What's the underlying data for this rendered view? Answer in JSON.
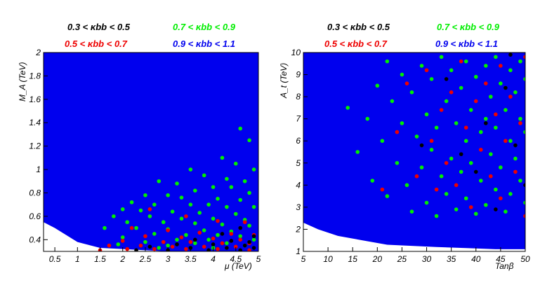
{
  "chart_data": [
    {
      "type": "scatter",
      "xlabel": "μ (TeV)",
      "ylabel": "M_A (TeV)",
      "xlim": [
        0.25,
        5.0
      ],
      "ylim": [
        0.3,
        2.0
      ],
      "xticks": [
        "0.5",
        "1",
        "1.5",
        "2",
        "2.5",
        "3",
        "3.5",
        "4",
        "4.5",
        "5"
      ],
      "yticks": [
        "0.4",
        "0.6",
        "0.8",
        "1",
        "1.2",
        "1.4",
        "1.6",
        "1.8",
        "2"
      ],
      "legend": [
        {
          "label": "0.3 < κbb < 0.5",
          "color": "#000000"
        },
        {
          "label": "0.7 < κbb < 0.9",
          "color": "#00ee00"
        },
        {
          "label": "0.5 < κbb < 0.7",
          "color": "#ee0000"
        },
        {
          "label": "0.9 < κbb < 1.1",
          "color": "#0000ee"
        }
      ],
      "series": [
        {
          "name": "0.9 < κbb < 1.1",
          "color": "#0000ee",
          "region": "dense fill above boundary",
          "boundary": [
            [
              0.25,
              0.55
            ],
            [
              0.5,
              0.5
            ],
            [
              1.0,
              0.38
            ],
            [
              1.5,
              0.33
            ],
            [
              2.0,
              0.32
            ],
            [
              2.5,
              0.31
            ],
            [
              3.0,
              0.3
            ],
            [
              5.0,
              0.3
            ]
          ]
        },
        {
          "name": "0.7 < κbb < 0.9",
          "color": "#00ee00",
          "points": [
            [
              4.6,
              1.35
            ],
            [
              4.8,
              1.25
            ],
            [
              4.2,
              1.1
            ],
            [
              4.5,
              1.05
            ],
            [
              3.5,
              1.0
            ],
            [
              4.9,
              1.0
            ],
            [
              3.8,
              0.95
            ],
            [
              4.3,
              0.92
            ],
            [
              4.7,
              0.9
            ],
            [
              2.8,
              0.9
            ],
            [
              3.2,
              0.88
            ],
            [
              4.0,
              0.85
            ],
            [
              4.4,
              0.85
            ],
            [
              3.6,
              0.82
            ],
            [
              4.8,
              0.8
            ],
            [
              2.5,
              0.78
            ],
            [
              3.0,
              0.78
            ],
            [
              3.3,
              0.76
            ],
            [
              4.1,
              0.75
            ],
            [
              4.6,
              0.74
            ],
            [
              2.2,
              0.72
            ],
            [
              2.7,
              0.7
            ],
            [
              3.5,
              0.7
            ],
            [
              3.9,
              0.7
            ],
            [
              4.3,
              0.68
            ],
            [
              4.9,
              0.68
            ],
            [
              2.0,
              0.66
            ],
            [
              2.4,
              0.65
            ],
            [
              3.1,
              0.64
            ],
            [
              3.7,
              0.63
            ],
            [
              4.5,
              0.62
            ],
            [
              1.8,
              0.6
            ],
            [
              2.6,
              0.6
            ],
            [
              3.3,
              0.58
            ],
            [
              4.0,
              0.58
            ],
            [
              4.7,
              0.57
            ],
            [
              2.1,
              0.55
            ],
            [
              2.9,
              0.55
            ],
            [
              3.6,
              0.54
            ],
            [
              4.2,
              0.53
            ],
            [
              4.8,
              0.52
            ],
            [
              1.6,
              0.5
            ],
            [
              2.3,
              0.5
            ],
            [
              3.0,
              0.49
            ],
            [
              3.8,
              0.48
            ],
            [
              4.4,
              0.47
            ],
            [
              2.7,
              0.45
            ],
            [
              3.4,
              0.44
            ],
            [
              4.1,
              0.44
            ],
            [
              4.6,
              0.43
            ],
            [
              2.0,
              0.42
            ],
            [
              3.2,
              0.4
            ],
            [
              3.9,
              0.4
            ],
            [
              4.9,
              0.4
            ],
            [
              2.5,
              0.38
            ],
            [
              3.6,
              0.37
            ],
            [
              4.3,
              0.37
            ],
            [
              1.9,
              0.36
            ],
            [
              3.0,
              0.35
            ],
            [
              4.7,
              0.35
            ],
            [
              2.8,
              0.33
            ],
            [
              4.0,
              0.33
            ]
          ]
        },
        {
          "name": "0.5 < κbb < 0.7",
          "color": "#ee0000",
          "points": [
            [
              2.6,
              0.66
            ],
            [
              3.4,
              0.6
            ],
            [
              4.1,
              0.56
            ],
            [
              4.7,
              0.55
            ],
            [
              2.2,
              0.5
            ],
            [
              3.0,
              0.48
            ],
            [
              3.7,
              0.46
            ],
            [
              4.4,
              0.45
            ],
            [
              4.9,
              0.44
            ],
            [
              2.5,
              0.43
            ],
            [
              3.3,
              0.42
            ],
            [
              4.0,
              0.41
            ],
            [
              4.6,
              0.4
            ],
            [
              2.0,
              0.39
            ],
            [
              2.9,
              0.38
            ],
            [
              3.5,
              0.38
            ],
            [
              4.2,
              0.37
            ],
            [
              4.8,
              0.37
            ],
            [
              1.7,
              0.35
            ],
            [
              2.4,
              0.35
            ],
            [
              3.1,
              0.34
            ],
            [
              3.8,
              0.34
            ],
            [
              4.5,
              0.34
            ],
            [
              2.1,
              0.32
            ],
            [
              2.7,
              0.32
            ],
            [
              3.4,
              0.32
            ],
            [
              4.1,
              0.32
            ],
            [
              4.8,
              0.31
            ],
            [
              1.5,
              0.31
            ]
          ]
        },
        {
          "name": "0.3 < κbb < 0.5",
          "color": "#000000",
          "points": [
            [
              4.6,
              0.5
            ],
            [
              4.2,
              0.45
            ],
            [
              4.9,
              0.43
            ],
            [
              3.6,
              0.4
            ],
            [
              4.4,
              0.39
            ],
            [
              4.8,
              0.38
            ],
            [
              3.2,
              0.36
            ],
            [
              4.0,
              0.36
            ],
            [
              4.7,
              0.35
            ],
            [
              2.6,
              0.34
            ],
            [
              3.5,
              0.33
            ],
            [
              4.3,
              0.33
            ],
            [
              4.9,
              0.33
            ],
            [
              2.3,
              0.31
            ],
            [
              3.0,
              0.31
            ],
            [
              3.9,
              0.31
            ],
            [
              4.6,
              0.31
            ]
          ]
        }
      ]
    },
    {
      "type": "scatter",
      "xlabel": "Tanβ",
      "ylabel": "A_t (TeV)",
      "xlim": [
        5,
        50
      ],
      "ylim": [
        1,
        10
      ],
      "xticks": [
        "5",
        "10",
        "15",
        "20",
        "25",
        "30",
        "35",
        "40",
        "45",
        "50"
      ],
      "yticks": [
        "1",
        "2",
        "3",
        "4",
        "5",
        "6",
        "7",
        "8",
        "9",
        "10"
      ],
      "legend": [
        {
          "label": "0.3 < κbb < 0.5",
          "color": "#000000"
        },
        {
          "label": "0.7 < κbb < 0.9",
          "color": "#00ee00"
        },
        {
          "label": "0.5 < κbb < 0.7",
          "color": "#ee0000"
        },
        {
          "label": "0.9 < κbb < 1.1",
          "color": "#0000ee"
        }
      ],
      "series": [
        {
          "name": "0.9 < κbb < 1.1",
          "color": "#0000ee",
          "region": "dense fill above boundary",
          "boundary": [
            [
              5,
              2.3
            ],
            [
              8,
              2.0
            ],
            [
              12,
              1.7
            ],
            [
              17,
              1.5
            ],
            [
              22,
              1.3
            ],
            [
              27,
              1.25
            ],
            [
              32,
              1.2
            ],
            [
              38,
              1.15
            ],
            [
              44,
              1.1
            ],
            [
              50,
              1.1
            ]
          ]
        },
        {
          "name": "0.7 < κbb < 0.9",
          "color": "#00ee00",
          "points": [
            [
              14,
              7.5
            ],
            [
              16,
              5.5
            ],
            [
              18,
              7.0
            ],
            [
              19,
              4.2
            ],
            [
              20,
              8.5
            ],
            [
              21,
              6.0
            ],
            [
              22,
              9.6
            ],
            [
              22,
              3.5
            ],
            [
              23,
              7.8
            ],
            [
              24,
              5.0
            ],
            [
              25,
              9.0
            ],
            [
              25,
              6.8
            ],
            [
              26,
              4.0
            ],
            [
              27,
              8.2
            ],
            [
              27,
              2.8
            ],
            [
              28,
              6.2
            ],
            [
              29,
              9.4
            ],
            [
              29,
              4.8
            ],
            [
              30,
              7.2
            ],
            [
              30,
              3.2
            ],
            [
              31,
              8.8
            ],
            [
              31,
              5.6
            ],
            [
              32,
              6.6
            ],
            [
              32,
              2.6
            ],
            [
              33,
              9.8
            ],
            [
              33,
              4.4
            ],
            [
              34,
              7.8
            ],
            [
              34,
              3.6
            ],
            [
              35,
              9.2
            ],
            [
              35,
              5.2
            ],
            [
              36,
              6.8
            ],
            [
              36,
              2.9
            ],
            [
              37,
              8.4
            ],
            [
              37,
              4.6
            ],
            [
              38,
              9.6
            ],
            [
              38,
              6.0
            ],
            [
              38,
              3.4
            ],
            [
              39,
              7.4
            ],
            [
              39,
              5.0
            ],
            [
              40,
              8.9
            ],
            [
              40,
              2.7
            ],
            [
              41,
              6.4
            ],
            [
              41,
              4.2
            ],
            [
              42,
              9.4
            ],
            [
              42,
              7.0
            ],
            [
              42,
              3.1
            ],
            [
              43,
              8.0
            ],
            [
              43,
              5.4
            ],
            [
              44,
              9.8
            ],
            [
              44,
              6.6
            ],
            [
              44,
              3.8
            ],
            [
              45,
              8.6
            ],
            [
              45,
              4.8
            ],
            [
              46,
              7.4
            ],
            [
              46,
              2.8
            ],
            [
              47,
              9.2
            ],
            [
              47,
              6.0
            ],
            [
              47,
              3.6
            ],
            [
              48,
              8.2
            ],
            [
              48,
              5.2
            ],
            [
              49,
              9.6
            ],
            [
              49,
              7.0
            ],
            [
              49,
              4.2
            ],
            [
              50,
              8.8
            ],
            [
              50,
              6.4
            ],
            [
              50,
              3.2
            ]
          ]
        },
        {
          "name": "0.5 < κbb < 0.7",
          "color": "#ee0000",
          "points": [
            [
              21,
              3.8
            ],
            [
              24,
              6.4
            ],
            [
              26,
              8.6
            ],
            [
              28,
              4.4
            ],
            [
              30,
              9.2
            ],
            [
              31,
              6.0
            ],
            [
              32,
              3.8
            ],
            [
              33,
              7.4
            ],
            [
              34,
              5.0
            ],
            [
              35,
              8.2
            ],
            [
              36,
              4.0
            ],
            [
              37,
              9.6
            ],
            [
              38,
              6.6
            ],
            [
              39,
              3.0
            ],
            [
              40,
              7.8
            ],
            [
              41,
              5.6
            ],
            [
              42,
              8.6
            ],
            [
              43,
              4.4
            ],
            [
              44,
              7.2
            ],
            [
              45,
              9.4
            ],
            [
              45,
              3.4
            ],
            [
              46,
              6.0
            ],
            [
              47,
              8.0
            ],
            [
              48,
              4.6
            ],
            [
              49,
              6.8
            ],
            [
              50,
              2.6
            ],
            [
              50,
              9.8
            ]
          ]
        },
        {
          "name": "0.3 < κbb < 0.5",
          "color": "#000000",
          "points": [
            [
              29,
              5.8
            ],
            [
              34,
              8.8
            ],
            [
              37,
              5.4
            ],
            [
              40,
              4.6
            ],
            [
              42,
              6.8
            ],
            [
              44,
              2.9
            ],
            [
              46,
              8.4
            ],
            [
              48,
              5.8
            ],
            [
              50,
              4.0
            ],
            [
              47,
              9.9
            ]
          ]
        }
      ]
    }
  ]
}
